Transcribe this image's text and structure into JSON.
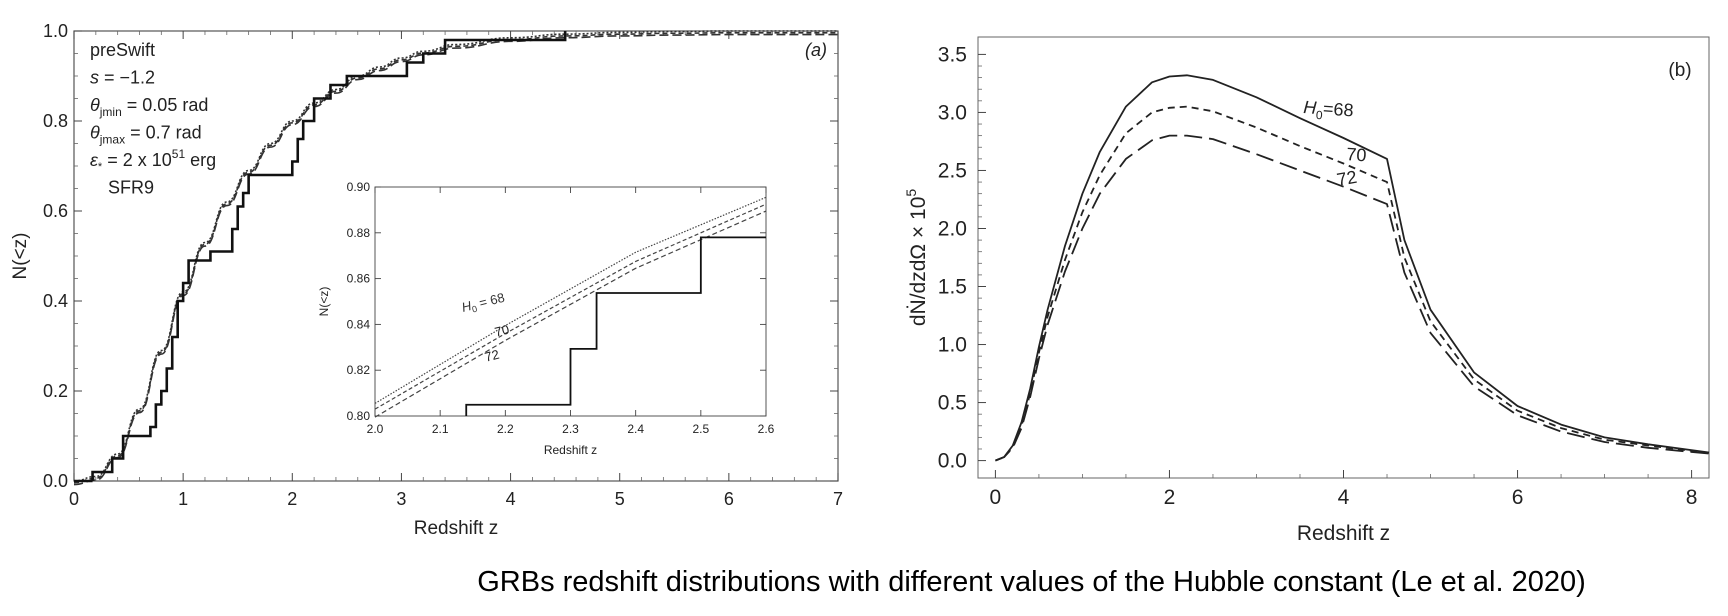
{
  "caption": "GRBs redshift distributions with different values of the Hubble constant (Le et al. 2020)",
  "chart_data": [
    {
      "type": "line",
      "panel_label": "(a)",
      "xlabel": "Redshift z",
      "ylabel": "N(<z)",
      "xlim": [
        0,
        7
      ],
      "ylim": [
        0,
        1
      ],
      "xticks": [
        "0",
        "1",
        "2",
        "3",
        "4",
        "5",
        "6",
        "7"
      ],
      "yticks": [
        "0.0",
        "0.2",
        "0.4",
        "0.6",
        "0.8",
        "1.0"
      ],
      "annotations": [
        "preSwift",
        "s = −1.2",
        "θjmin = 0.05 rad",
        "θjmax = 0.7 rad",
        "ε* = 2 x 10^51 erg",
        "SFR9"
      ],
      "model_curve": {
        "x": [
          0,
          0.2,
          0.4,
          0.6,
          0.8,
          1.0,
          1.2,
          1.4,
          1.6,
          1.8,
          2.0,
          2.2,
          2.4,
          2.6,
          2.8,
          3.0,
          3.2,
          3.5,
          4.0,
          4.5,
          5.0,
          5.5,
          6.0,
          7.0
        ],
        "y": [
          0,
          0.01,
          0.06,
          0.16,
          0.29,
          0.42,
          0.53,
          0.62,
          0.69,
          0.75,
          0.8,
          0.84,
          0.87,
          0.9,
          0.92,
          0.94,
          0.955,
          0.97,
          0.985,
          0.993,
          0.997,
          0.999,
          1.0,
          1.0
        ]
      },
      "observed_steps": {
        "x": [
          0.17,
          0.35,
          0.45,
          0.55,
          0.7,
          0.75,
          0.8,
          0.85,
          0.9,
          0.95,
          1.0,
          1.05,
          1.1,
          1.25,
          1.45,
          1.5,
          1.55,
          1.6,
          2.0,
          2.05,
          2.1,
          2.2,
          2.35,
          2.5,
          2.65,
          3.05,
          3.2,
          3.4,
          4.5
        ],
        "y": [
          0.02,
          0.05,
          0.1,
          0.1,
          0.12,
          0.17,
          0.2,
          0.25,
          0.32,
          0.4,
          0.44,
          0.49,
          0.49,
          0.51,
          0.56,
          0.61,
          0.64,
          0.68,
          0.71,
          0.76,
          0.8,
          0.85,
          0.88,
          0.9,
          0.9,
          0.93,
          0.95,
          0.98,
          1.0
        ]
      },
      "inset": {
        "xlabel": "Redshift z",
        "ylabel": "N(<z)",
        "xlim": [
          2.0,
          2.6
        ],
        "ylim": [
          0.8,
          0.9
        ],
        "xticks": [
          "2.0",
          "2.1",
          "2.2",
          "2.3",
          "2.4",
          "2.5",
          "2.6"
        ],
        "yticks": [
          "0.80",
          "0.82",
          "0.84",
          "0.86",
          "0.88",
          "0.90"
        ],
        "series": [
          {
            "name": "H0 = 68",
            "x": [
              2.0,
              2.2,
              2.4,
              2.6
            ],
            "y": [
              0.8055,
              0.8395,
              0.8715,
              0.8955
            ]
          },
          {
            "name": "70",
            "x": [
              2.0,
              2.2,
              2.4,
              2.6
            ],
            "y": [
              0.803,
              0.836,
              0.8675,
              0.8925
            ]
          },
          {
            "name": "72",
            "x": [
              2.0,
              2.2,
              2.4,
              2.6
            ],
            "y": [
              0.7995,
              0.833,
              0.8645,
              0.8895
            ]
          }
        ],
        "observed_steps": {
          "x": [
            2.14,
            2.3,
            2.34,
            2.5
          ],
          "y": [
            0.8049,
            0.8293,
            0.8537,
            0.878
          ]
        }
      }
    },
    {
      "type": "line",
      "panel_label": "(b)",
      "xlabel": "Redshift z",
      "ylabel": "dṄ/dzdΩ × 10^5",
      "xlim": [
        -0.2,
        8.2
      ],
      "ylim": [
        -0.15,
        3.65
      ],
      "xticks": [
        "0",
        "2",
        "4",
        "6",
        "8"
      ],
      "yticks": [
        "0.0",
        "0.5",
        "1.0",
        "1.5",
        "2.0",
        "2.5",
        "3.0",
        "3.5"
      ],
      "x": [
        0,
        0.1,
        0.2,
        0.3,
        0.4,
        0.5,
        0.6,
        0.8,
        1.0,
        1.2,
        1.5,
        1.8,
        2.0,
        2.2,
        2.5,
        3.0,
        3.5,
        4.0,
        4.5,
        4.7,
        5.0,
        5.5,
        6.0,
        6.5,
        7.0,
        7.5,
        8.2
      ],
      "series": [
        {
          "name": "H0=68",
          "values": [
            0,
            0.03,
            0.13,
            0.33,
            0.62,
            0.98,
            1.3,
            1.85,
            2.3,
            2.66,
            3.05,
            3.26,
            3.31,
            3.32,
            3.28,
            3.13,
            2.95,
            2.78,
            2.6,
            1.9,
            1.3,
            0.76,
            0.47,
            0.31,
            0.2,
            0.14,
            0.07
          ]
        },
        {
          "name": "70",
          "values": [
            0,
            0.03,
            0.12,
            0.3,
            0.58,
            0.93,
            1.24,
            1.73,
            2.14,
            2.46,
            2.82,
            3.0,
            3.04,
            3.05,
            3.01,
            2.87,
            2.71,
            2.56,
            2.4,
            1.75,
            1.2,
            0.7,
            0.43,
            0.28,
            0.18,
            0.13,
            0.065
          ]
        },
        {
          "name": "72",
          "values": [
            0,
            0.03,
            0.11,
            0.28,
            0.55,
            0.88,
            1.17,
            1.63,
            2.0,
            2.3,
            2.6,
            2.76,
            2.8,
            2.8,
            2.77,
            2.64,
            2.5,
            2.36,
            2.21,
            1.62,
            1.1,
            0.64,
            0.39,
            0.25,
            0.16,
            0.11,
            0.06
          ]
        }
      ],
      "labels": [
        "H0=68",
        "70",
        "72"
      ]
    }
  ]
}
